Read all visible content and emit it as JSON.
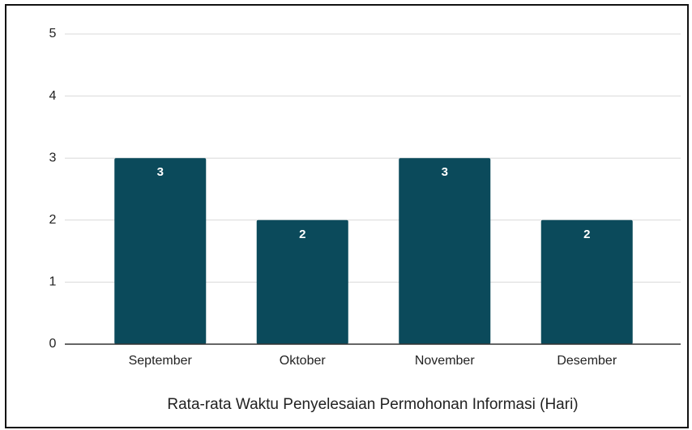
{
  "chart_data": {
    "type": "bar",
    "x_label": "Rata-rata Waktu Penyelesaian Permohonan Informasi (Hari)",
    "categories": [
      "September",
      "Oktober",
      "November",
      "Desember"
    ],
    "values": [
      3,
      2,
      3,
      2
    ],
    "color": "#0b4a5b",
    "ylim": [
      0,
      5
    ],
    "yticks": [
      0,
      1,
      2,
      3,
      4,
      5
    ],
    "grid": true
  }
}
